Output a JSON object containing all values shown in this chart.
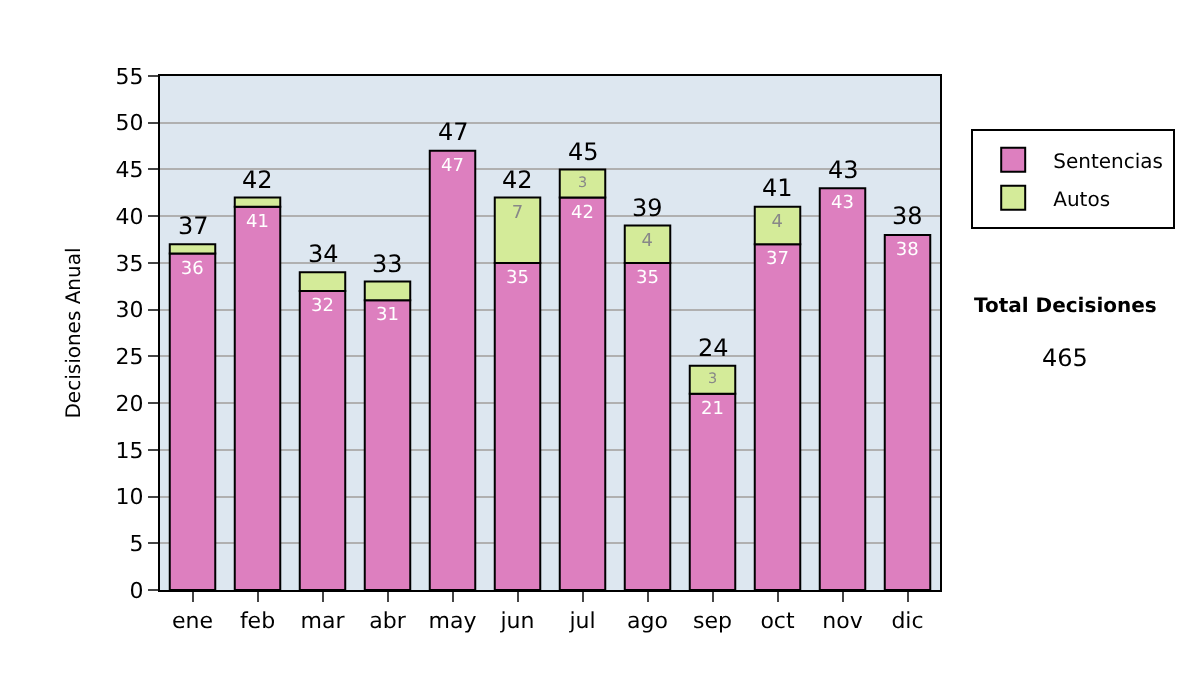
{
  "chart_data": {
    "type": "bar",
    "stacked": true,
    "ylabel": "Decisiones Anual",
    "categories": [
      "ene",
      "feb",
      "mar",
      "abr",
      "may",
      "jun",
      "jul",
      "ago",
      "sep",
      "oct",
      "nov",
      "dic"
    ],
    "series": [
      {
        "name": "Sentencias",
        "color": "#dd7fbf",
        "values": [
          36,
          41,
          32,
          31,
          47,
          35,
          42,
          35,
          21,
          37,
          43,
          38
        ],
        "value_labels": [
          "36",
          "41",
          "32",
          "31",
          "47",
          "35",
          "42",
          "35",
          "21",
          "37",
          "43",
          "38"
        ]
      },
      {
        "name": "Autos",
        "color": "#d4eb99",
        "values": [
          1,
          1,
          2,
          2,
          null,
          7,
          3,
          4,
          3,
          4,
          null,
          null
        ],
        "value_labels": [
          null,
          null,
          null,
          null,
          null,
          "7",
          "3",
          "4",
          "3",
          "4",
          null,
          null
        ]
      }
    ],
    "totals": [
      "37",
      "42",
      "34",
      "33",
      "47",
      "42",
      "45",
      "39",
      "24",
      "41",
      "43",
      "38"
    ],
    "ylim": [
      0,
      55
    ],
    "yticks": [
      0,
      5,
      10,
      15,
      20,
      25,
      30,
      35,
      40,
      45,
      50,
      55
    ],
    "grid": "y",
    "legend": "right",
    "annotations": [
      "Total Decisiones",
      "465"
    ]
  }
}
